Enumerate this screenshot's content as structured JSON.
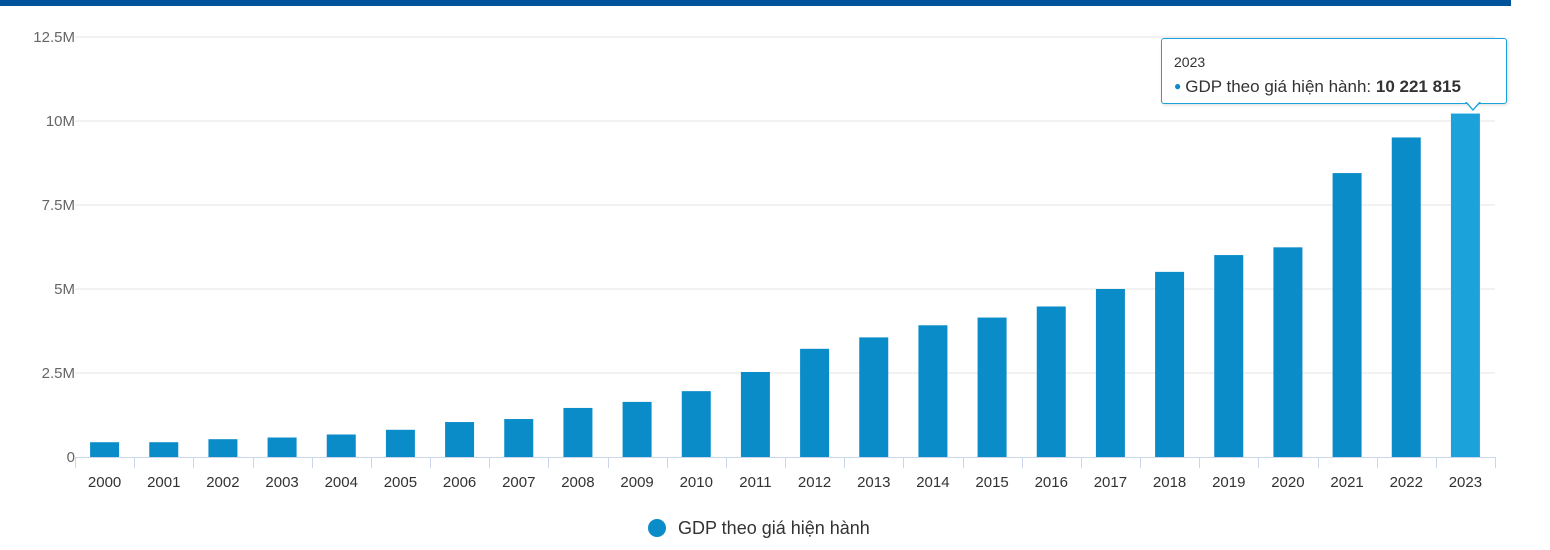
{
  "colors": {
    "top_bar": "#00539b",
    "bar": "#0a8cc9",
    "bar_highlight": "#1ba2db",
    "grid": "#e6e6e6",
    "axis": "#ccd6eb"
  },
  "tooltip": {
    "year": "2023",
    "series_label": "GDP theo giá hiện hành: ",
    "value": "10 221 815"
  },
  "legend": {
    "label": "GDP theo giá hiện hành"
  },
  "chart_data": {
    "type": "bar",
    "title": "",
    "xlabel": "",
    "ylabel": "",
    "ylim": [
      0,
      12500000
    ],
    "grid": true,
    "legend_position": "bottom-center",
    "y_ticks": [
      0,
      2500000,
      5000000,
      7500000,
      10000000,
      12500000
    ],
    "y_tick_labels": [
      "0",
      "2.5M",
      "5M",
      "7.5M",
      "10M",
      "12.5M"
    ],
    "categories": [
      "2000",
      "2001",
      "2002",
      "2003",
      "2004",
      "2005",
      "2006",
      "2007",
      "2008",
      "2009",
      "2010",
      "2011",
      "2012",
      "2013",
      "2014",
      "2015",
      "2016",
      "2017",
      "2018",
      "2019",
      "2020",
      "2021",
      "2022",
      "2023"
    ],
    "highlight_index": 23,
    "series": [
      {
        "name": "GDP theo giá hiện hành",
        "values": [
          440000,
          440000,
          530000,
          580000,
          670000,
          810000,
          1040000,
          1130000,
          1460000,
          1640000,
          1960000,
          2530000,
          3220000,
          3560000,
          3920000,
          4150000,
          4480000,
          5000000,
          5510000,
          6010000,
          6240000,
          8450000,
          9510000,
          10221815
        ]
      }
    ]
  }
}
